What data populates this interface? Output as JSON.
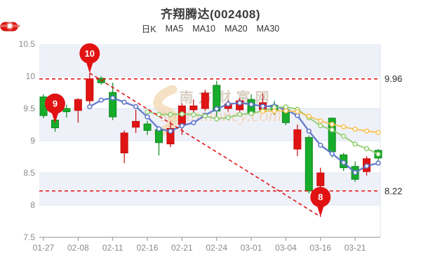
{
  "title": "齐翔腾达(002408)",
  "legend": {
    "items": [
      {
        "label": "日K",
        "type": "k-rect",
        "color": "#e01414"
      },
      {
        "label": "MA5",
        "type": "line",
        "color": "#5b73c9"
      },
      {
        "label": "MA10",
        "type": "line",
        "color": "#7fbf5f"
      },
      {
        "label": "MA20",
        "type": "line",
        "color": "#f7c04e"
      },
      {
        "label": "MA30",
        "type": "line",
        "color": "#ee6666"
      }
    ]
  },
  "watermark": {
    "line1": "南方财富网",
    "line2": "southmoney.com"
  },
  "chart_data": {
    "type": "candlestick",
    "title": "齐翔腾达(002408)",
    "ylim": [
      7.5,
      10.5
    ],
    "y_ticks": [
      "7.5",
      "8",
      "8.5",
      "9",
      "9.5",
      "10",
      "10.5"
    ],
    "x_tick_labels": [
      "01-27",
      "02-08",
      "02-11",
      "02-16",
      "02-21",
      "02-24",
      "03-01",
      "03-04",
      "03-16",
      "03-21"
    ],
    "x_tick_indices": [
      0,
      3,
      6,
      9,
      12,
      15,
      18,
      21,
      24,
      27
    ],
    "up_color": "#e01414",
    "down_color": "#17ac2b",
    "ohlc_order": [
      "open",
      "close",
      "high",
      "low"
    ],
    "ohlc": [
      [
        9.68,
        9.39,
        9.72,
        9.35
      ],
      [
        9.32,
        9.2,
        9.4,
        9.14
      ],
      [
        9.5,
        9.45,
        9.56,
        9.36
      ],
      [
        9.47,
        9.64,
        9.66,
        9.28
      ],
      [
        9.62,
        9.96,
        10.05,
        9.56
      ],
      [
        9.97,
        9.9,
        10.0,
        9.87
      ],
      [
        9.75,
        9.37,
        9.9,
        9.32
      ],
      [
        8.81,
        9.12,
        9.16,
        8.65
      ],
      [
        9.21,
        9.3,
        9.48,
        9.12
      ],
      [
        9.26,
        9.16,
        9.31,
        9.09
      ],
      [
        9.17,
        8.97,
        9.2,
        8.77
      ],
      [
        8.95,
        9.19,
        9.3,
        8.9
      ],
      [
        9.25,
        9.54,
        9.58,
        9.09
      ],
      [
        9.48,
        9.54,
        9.64,
        9.41
      ],
      [
        9.5,
        9.74,
        9.79,
        9.46
      ],
      [
        9.86,
        9.46,
        9.93,
        9.3
      ],
      [
        9.5,
        9.57,
        9.63,
        9.45
      ],
      [
        9.48,
        9.62,
        9.66,
        9.45
      ],
      [
        9.64,
        9.43,
        9.72,
        9.39
      ],
      [
        9.48,
        9.59,
        9.74,
        9.43
      ],
      [
        9.55,
        9.48,
        9.62,
        9.4
      ],
      [
        9.48,
        9.28,
        9.52,
        9.24
      ],
      [
        8.87,
        9.17,
        9.25,
        8.76
      ],
      [
        9.05,
        8.22,
        9.08,
        8.18
      ],
      [
        8.3,
        8.5,
        8.58,
        7.82
      ],
      [
        9.35,
        8.83,
        9.36,
        8.74
      ],
      [
        8.78,
        8.58,
        8.81,
        8.53
      ],
      [
        8.6,
        8.4,
        8.68,
        8.36
      ],
      [
        8.52,
        8.72,
        8.76,
        8.46
      ],
      [
        8.85,
        8.73,
        8.87,
        8.67
      ]
    ],
    "ma_series": [
      {
        "name": "MA5",
        "window": 5,
        "color": "#5b73c9"
      },
      {
        "name": "MA10",
        "window": 10,
        "color": "#8fcc70"
      },
      {
        "name": "MA20",
        "window": 20,
        "color": "#f7c04e"
      },
      {
        "name": "MA30",
        "window": 30,
        "color": "#ee6666"
      }
    ],
    "reference_lines": [
      {
        "value": 9.96,
        "label": "9.96"
      },
      {
        "value": 8.22,
        "label": "8.22"
      }
    ],
    "trend_line": {
      "from": {
        "index": 4,
        "value": 10.05
      },
      "to": {
        "index": 24,
        "value": 7.82
      }
    },
    "pins": [
      {
        "label": "10",
        "index": 4,
        "value": 10.05
      },
      {
        "label": "9",
        "index": 1,
        "value": 9.27
      },
      {
        "label": "8",
        "index": 24,
        "value": 7.82
      }
    ],
    "legend_position": "top",
    "grid": true
  }
}
